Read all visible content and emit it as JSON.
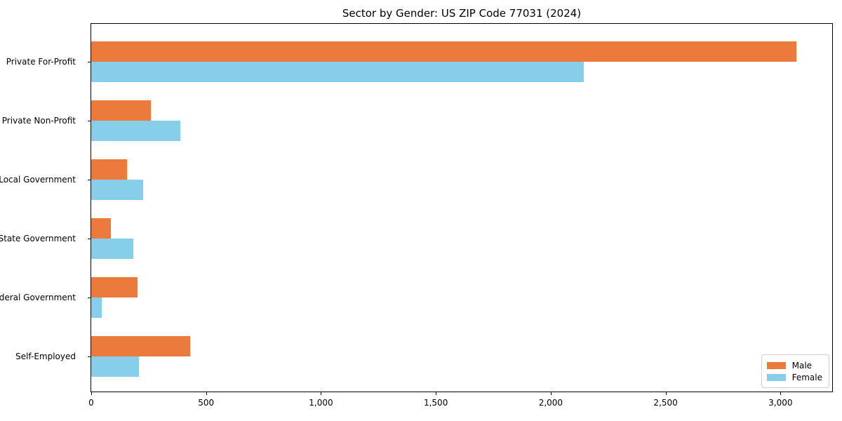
{
  "title": "Sector by Gender: US ZIP Code 77031 (2024)",
  "chart_data": {
    "type": "bar",
    "orientation": "horizontal",
    "title": "Sector by Gender: US ZIP Code 77031 (2024)",
    "categories": [
      "Private For-Profit",
      "Private Non-Profit",
      "Local Government",
      "State Government",
      "Federal Government",
      "Self-Employed"
    ],
    "series": [
      {
        "name": "Male",
        "color": "#eb7a3c",
        "values": [
          3070,
          261,
          156,
          84,
          202,
          431
        ]
      },
      {
        "name": "Female",
        "color": "#87ceeb",
        "values": [
          2145,
          388,
          227,
          184,
          47,
          207
        ]
      }
    ],
    "xlabel": "",
    "ylabel": "",
    "xlim": [
      0,
      3225
    ],
    "xticks": [
      0,
      500,
      1000,
      1500,
      2000,
      2500,
      3000
    ],
    "xtick_labels": [
      "0",
      "500",
      "1,000",
      "1,500",
      "2,000",
      "2,500",
      "3,000"
    ],
    "grid": false,
    "legend_position": "lower right"
  },
  "legend": {
    "items": [
      {
        "label": "Male"
      },
      {
        "label": "Female"
      }
    ]
  }
}
